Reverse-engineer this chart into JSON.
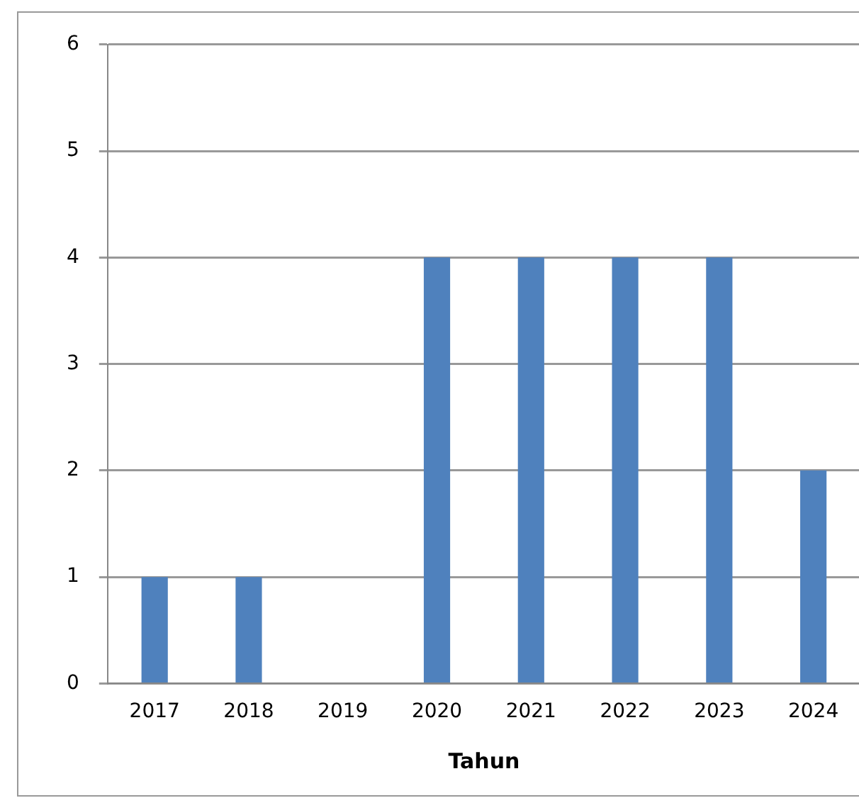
{
  "chart_data": {
    "type": "bar",
    "xlabel": "Tahun",
    "categories": [
      "2017",
      "2018",
      "2019",
      "2020",
      "2021",
      "2022",
      "2023",
      "2024"
    ],
    "values": [
      1,
      1,
      0,
      4,
      4,
      4,
      4,
      2
    ],
    "color": "#4f81bd",
    "ylim": [
      0,
      6
    ],
    "yticks": [
      0,
      1,
      2,
      3,
      4,
      5,
      6
    ],
    "grid": "y",
    "legend": false
  }
}
